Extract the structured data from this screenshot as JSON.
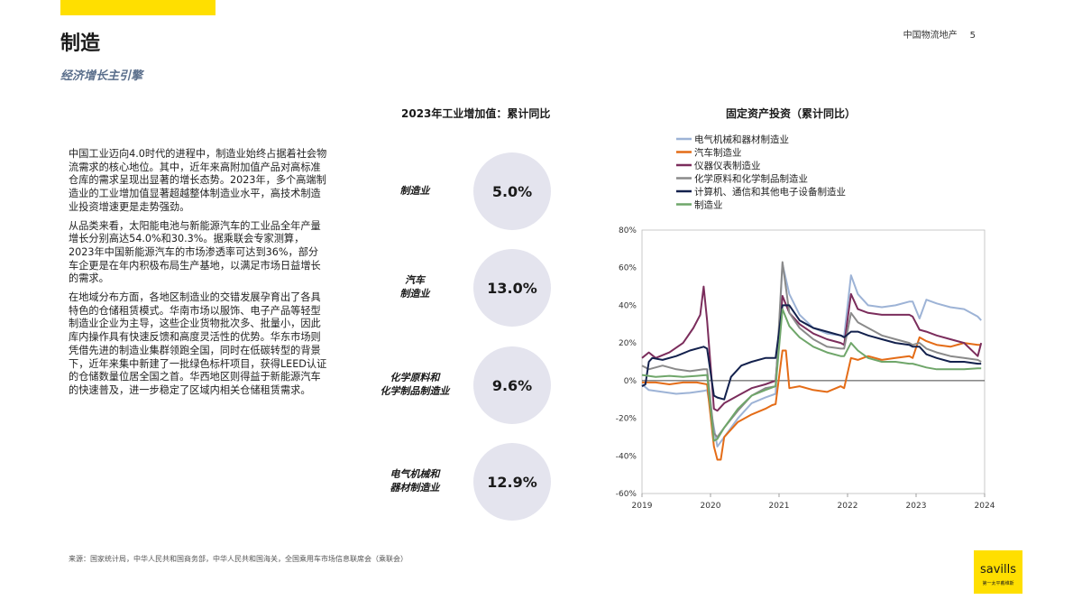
{
  "header": {
    "title": "制造",
    "subtitle": "经济增长主引擎",
    "report_name": "中国物流地产",
    "page_number": "5"
  },
  "body_paragraphs": [
    "中国工业迈向4.0时代的进程中，制造业始终占据着社会物流需求的核心地位。其中，近年来高附加值产品对高标准仓库的需求呈现出显著的增长态势。2023年，多个高端制造业的工业增加值显著超越整体制造业水平，高技术制造业投资增速更是走势强劲。",
    "从品类来看，太阳能电池与新能源汽车的工业品全年产量增长分别高达54.0%和30.3%。据乘联会专家测算，2023年中国新能源汽车的市场渗透率可达到36%，部分车企更是在年内积极布局生产基地，以满足市场日益增长的需求。",
    "在地域分布方面，各地区制造业的交错发展孕育出了各具特色的仓储租赁模式。华南市场以服饰、电子产品等轻型制造业企业为主导，这些企业货物批次多、批量小，因此库内操作具有快速反馈和高度灵活性的优势。华东市场则凭借先进的制造业集群领跑全国，同时在低碳转型的背景下，近年来集中新建了一批绿色标杆项目，获得LEED认证的仓储数量位居全国之首。华西地区则得益于新能源汽车的快速普及，进一步稳定了区域内相关仓储租赁需求。"
  ],
  "kpi": {
    "title": "2023年工业增加值：累计同比",
    "items": [
      {
        "label_lines": [
          "制造业"
        ],
        "value": "5.0%"
      },
      {
        "label_lines": [
          "汽车",
          "制造业"
        ],
        "value": "13.0%"
      },
      {
        "label_lines": [
          "化学原料和",
          "化学制品制造业"
        ],
        "value": "9.6%"
      },
      {
        "label_lines": [
          "电气机械和",
          "器材制造业"
        ],
        "value": "12.9%"
      }
    ]
  },
  "chart_data": {
    "type": "line",
    "title": "固定资产投资（累计同比）",
    "x_ticks": [
      "2019",
      "2020",
      "2021",
      "2022",
      "2023",
      "2024"
    ],
    "y_ticks": [
      "80%",
      "60%",
      "40%",
      "20%",
      "0%",
      "-20%",
      "-40%",
      "-60%"
    ],
    "ylim": [
      -60,
      80
    ],
    "xlim": [
      2019.0,
      2024.0
    ],
    "legend_position": "top-left",
    "series": [
      {
        "name": "电气机械和器材制造业",
        "color": "#9db3d6",
        "points": [
          [
            2019.0,
            -2
          ],
          [
            2019.1,
            -5
          ],
          [
            2019.3,
            -6
          ],
          [
            2019.5,
            -7
          ],
          [
            2019.7,
            -6.5
          ],
          [
            2019.9,
            -5.5
          ],
          [
            2019.95,
            -5
          ],
          [
            2020.1,
            -35
          ],
          [
            2020.2,
            -30
          ],
          [
            2020.4,
            -20
          ],
          [
            2020.6,
            -12
          ],
          [
            2020.8,
            -9
          ],
          [
            2020.95,
            -7
          ],
          [
            2021.05,
            62
          ],
          [
            2021.15,
            46
          ],
          [
            2021.3,
            35
          ],
          [
            2021.5,
            28
          ],
          [
            2021.7,
            25
          ],
          [
            2021.9,
            24
          ],
          [
            2021.95,
            23.5
          ],
          [
            2022.05,
            56
          ],
          [
            2022.15,
            46
          ],
          [
            2022.3,
            40
          ],
          [
            2022.5,
            39
          ],
          [
            2022.7,
            40
          ],
          [
            2022.9,
            42
          ],
          [
            2022.95,
            42
          ],
          [
            2023.05,
            33
          ],
          [
            2023.15,
            43
          ],
          [
            2023.3,
            41
          ],
          [
            2023.5,
            39
          ],
          [
            2023.7,
            38
          ],
          [
            2023.9,
            34
          ],
          [
            2023.95,
            32
          ]
        ]
      },
      {
        "name": "汽车制造业",
        "color": "#e46c17",
        "points": [
          [
            2019.0,
            -1
          ],
          [
            2019.2,
            -1
          ],
          [
            2019.4,
            -2
          ],
          [
            2019.6,
            -1
          ],
          [
            2019.8,
            -1
          ],
          [
            2019.95,
            -2
          ],
          [
            2020.05,
            -35
          ],
          [
            2020.1,
            -42
          ],
          [
            2020.15,
            -42
          ],
          [
            2020.2,
            -30
          ],
          [
            2020.4,
            -22
          ],
          [
            2020.6,
            -18
          ],
          [
            2020.8,
            -15
          ],
          [
            2020.9,
            -13
          ],
          [
            2020.95,
            -12.5
          ],
          [
            2021.05,
            16
          ],
          [
            2021.1,
            16
          ],
          [
            2021.15,
            -4
          ],
          [
            2021.3,
            -3
          ],
          [
            2021.5,
            -5
          ],
          [
            2021.7,
            -6
          ],
          [
            2021.9,
            -3
          ],
          [
            2021.95,
            -4
          ],
          [
            2022.05,
            12
          ],
          [
            2022.15,
            11
          ],
          [
            2022.3,
            13
          ],
          [
            2022.5,
            11
          ],
          [
            2022.7,
            12
          ],
          [
            2022.9,
            13
          ],
          [
            2022.95,
            12
          ],
          [
            2023.05,
            23
          ],
          [
            2023.15,
            21
          ],
          [
            2023.3,
            19
          ],
          [
            2023.5,
            18
          ],
          [
            2023.7,
            20
          ],
          [
            2023.9,
            19
          ],
          [
            2023.95,
            19
          ]
        ]
      },
      {
        "name": "仪器仪表制造业",
        "color": "#7b2d5c",
        "points": [
          [
            2019.0,
            12
          ],
          [
            2019.1,
            15
          ],
          [
            2019.2,
            12
          ],
          [
            2019.4,
            15
          ],
          [
            2019.6,
            20
          ],
          [
            2019.75,
            28
          ],
          [
            2019.85,
            35
          ],
          [
            2019.9,
            50
          ],
          [
            2019.95,
            32
          ],
          [
            2020.05,
            -15
          ],
          [
            2020.1,
            -16
          ],
          [
            2020.2,
            -12
          ],
          [
            2020.4,
            -8
          ],
          [
            2020.6,
            -4
          ],
          [
            2020.8,
            -2
          ],
          [
            2020.95,
            0
          ],
          [
            2021.05,
            45
          ],
          [
            2021.15,
            36
          ],
          [
            2021.3,
            30
          ],
          [
            2021.5,
            25
          ],
          [
            2021.7,
            22
          ],
          [
            2021.9,
            20
          ],
          [
            2021.95,
            19
          ],
          [
            2022.05,
            46
          ],
          [
            2022.15,
            38
          ],
          [
            2022.3,
            36
          ],
          [
            2022.5,
            35
          ],
          [
            2022.7,
            35
          ],
          [
            2022.9,
            35
          ],
          [
            2022.95,
            34
          ],
          [
            2023.05,
            27
          ],
          [
            2023.15,
            26
          ],
          [
            2023.3,
            24
          ],
          [
            2023.5,
            22
          ],
          [
            2023.7,
            20
          ],
          [
            2023.9,
            13
          ],
          [
            2023.95,
            20
          ]
        ]
      },
      {
        "name": "化学原料和化学制品制造业",
        "color": "#8a8a8a",
        "points": [
          [
            2019.0,
            8
          ],
          [
            2019.1,
            6
          ],
          [
            2019.3,
            8
          ],
          [
            2019.5,
            6
          ],
          [
            2019.7,
            5
          ],
          [
            2019.9,
            6
          ],
          [
            2019.95,
            6
          ],
          [
            2020.05,
            -28
          ],
          [
            2020.1,
            -30
          ],
          [
            2020.2,
            -25
          ],
          [
            2020.4,
            -16
          ],
          [
            2020.6,
            -8
          ],
          [
            2020.8,
            -4
          ],
          [
            2020.95,
            -3
          ],
          [
            2021.05,
            63
          ],
          [
            2021.15,
            36
          ],
          [
            2021.3,
            28
          ],
          [
            2021.5,
            22
          ],
          [
            2021.7,
            18
          ],
          [
            2021.9,
            17
          ],
          [
            2021.95,
            17
          ],
          [
            2022.05,
            36
          ],
          [
            2022.15,
            31
          ],
          [
            2022.3,
            28
          ],
          [
            2022.5,
            24
          ],
          [
            2022.7,
            22
          ],
          [
            2022.9,
            20
          ],
          [
            2022.95,
            19
          ],
          [
            2023.05,
            20
          ],
          [
            2023.15,
            17
          ],
          [
            2023.3,
            15
          ],
          [
            2023.5,
            13
          ],
          [
            2023.7,
            12
          ],
          [
            2023.9,
            11
          ],
          [
            2023.95,
            10
          ]
        ]
      },
      {
        "name": "计算机、通信和其他电子设备制造业",
        "color": "#13214d",
        "points": [
          [
            2019.0,
            -3
          ],
          [
            2019.05,
            -2
          ],
          [
            2019.1,
            10
          ],
          [
            2019.15,
            12
          ],
          [
            2019.3,
            11
          ],
          [
            2019.5,
            13
          ],
          [
            2019.7,
            16
          ],
          [
            2019.9,
            18
          ],
          [
            2019.95,
            17
          ],
          [
            2020.05,
            -8
          ],
          [
            2020.1,
            -9
          ],
          [
            2020.2,
            -10
          ],
          [
            2020.3,
            2
          ],
          [
            2020.45,
            8
          ],
          [
            2020.6,
            10
          ],
          [
            2020.8,
            12
          ],
          [
            2020.95,
            12
          ],
          [
            2021.05,
            40
          ],
          [
            2021.15,
            40
          ],
          [
            2021.3,
            32
          ],
          [
            2021.5,
            28
          ],
          [
            2021.7,
            26
          ],
          [
            2021.9,
            24
          ],
          [
            2021.95,
            23
          ],
          [
            2022.05,
            26
          ],
          [
            2022.15,
            26
          ],
          [
            2022.3,
            24
          ],
          [
            2022.5,
            22
          ],
          [
            2022.7,
            20
          ],
          [
            2022.9,
            19
          ],
          [
            2022.95,
            18
          ],
          [
            2023.05,
            18
          ],
          [
            2023.15,
            14
          ],
          [
            2023.3,
            12
          ],
          [
            2023.5,
            10
          ],
          [
            2023.7,
            10
          ],
          [
            2023.9,
            9
          ],
          [
            2023.95,
            9
          ]
        ]
      },
      {
        "name": "制造业",
        "color": "#6fa66a",
        "points": [
          [
            2019.0,
            3
          ],
          [
            2019.2,
            2
          ],
          [
            2019.4,
            2.5
          ],
          [
            2019.6,
            2
          ],
          [
            2019.8,
            2.5
          ],
          [
            2019.95,
            3
          ],
          [
            2020.05,
            -32
          ],
          [
            2020.1,
            -31
          ],
          [
            2020.2,
            -25
          ],
          [
            2020.4,
            -15
          ],
          [
            2020.6,
            -8
          ],
          [
            2020.8,
            -5
          ],
          [
            2020.95,
            -3
          ],
          [
            2021.05,
            38
          ],
          [
            2021.15,
            29
          ],
          [
            2021.3,
            23
          ],
          [
            2021.5,
            18
          ],
          [
            2021.7,
            15
          ],
          [
            2021.9,
            13
          ],
          [
            2021.95,
            13
          ],
          [
            2022.05,
            20
          ],
          [
            2022.15,
            16
          ],
          [
            2022.3,
            12
          ],
          [
            2022.5,
            10
          ],
          [
            2022.7,
            10
          ],
          [
            2022.9,
            9
          ],
          [
            2022.95,
            9
          ],
          [
            2023.05,
            8
          ],
          [
            2023.15,
            7
          ],
          [
            2023.3,
            6
          ],
          [
            2023.5,
            6
          ],
          [
            2023.7,
            6
          ],
          [
            2023.9,
            6.5
          ],
          [
            2023.95,
            6.5
          ]
        ]
      }
    ]
  },
  "footer": {
    "source": "来源：国家统计局，中华人民共和国商务部，中华人民共和国海关，全国乘用车市场信息联席会（乘联会）",
    "logo_word": "savills",
    "logo_tag": "第一太平戴维斯"
  }
}
